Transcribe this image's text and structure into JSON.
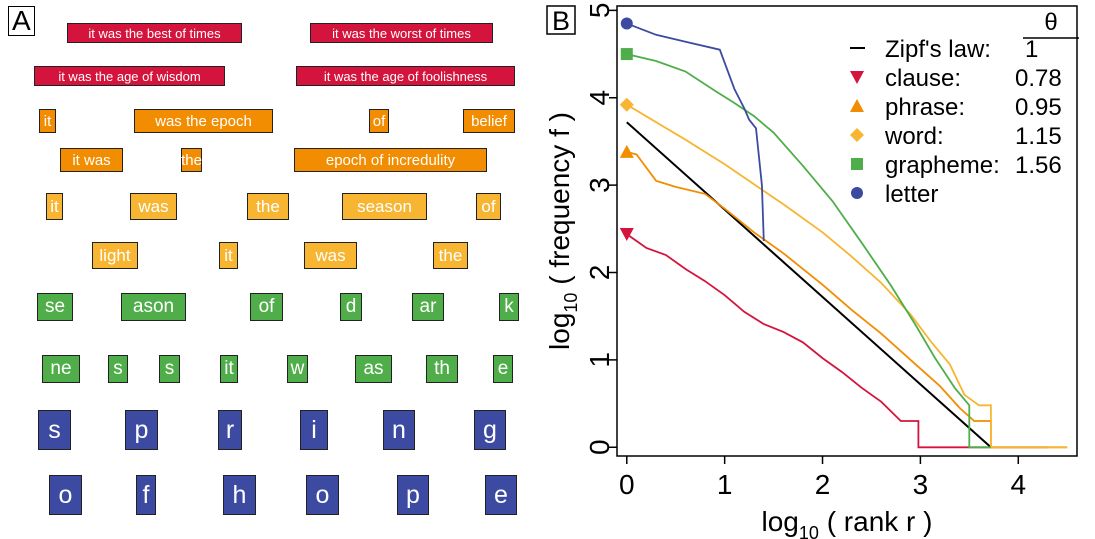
{
  "panel_a": {
    "label": "A",
    "colors": {
      "clause": "#d4143c",
      "phrase": "#f28c00",
      "word": "#f7b532",
      "grapheme": "#4fae49",
      "letter": "#3c4ba1"
    },
    "rows": [
      {
        "level": "clause",
        "items": [
          "it was the best of times",
          "it was the worst of times"
        ]
      },
      {
        "level": "clause",
        "items": [
          "it was the age of wisdom",
          "it was the age of foolishness"
        ]
      },
      {
        "level": "phrase",
        "items": [
          "it",
          "was the epoch",
          "of",
          "belief"
        ]
      },
      {
        "level": "phrase",
        "items": [
          "it was",
          "the",
          "epoch of incredulity"
        ]
      },
      {
        "level": "word",
        "items": [
          "it",
          "was",
          "the",
          "season",
          "of"
        ]
      },
      {
        "level": "word",
        "items": [
          "light",
          "it",
          "was",
          "the"
        ]
      },
      {
        "level": "grapheme",
        "items": [
          "se",
          "ason",
          "of",
          "d",
          "ar",
          "k"
        ]
      },
      {
        "level": "grapheme",
        "items": [
          "ne",
          "s",
          "s",
          "it",
          "w",
          "as",
          "th",
          "e"
        ]
      },
      {
        "level": "letter",
        "items": [
          "s",
          "p",
          "r",
          "i",
          "n",
          "g"
        ]
      },
      {
        "level": "letter",
        "items": [
          "o",
          "f",
          "h",
          "o",
          "p",
          "e"
        ]
      }
    ]
  },
  "chart_data": {
    "type": "line",
    "panel_label": "B",
    "xlabel": "log10 ( rank r )",
    "ylabel": "log10 ( frequency f )",
    "xlim": [
      -0.1,
      4.6
    ],
    "ylim": [
      -0.1,
      5.05
    ],
    "xticks": [
      0,
      1,
      2,
      3,
      4
    ],
    "yticks": [
      0,
      1,
      2,
      3,
      4,
      5
    ],
    "legend_header": "θ",
    "legend": [
      {
        "name": "Zipf's law:",
        "theta": "1",
        "color": "#000000",
        "marker": "line"
      },
      {
        "name": "clause:",
        "theta": "0.78",
        "color": "#d4143c",
        "marker": "triangle-down"
      },
      {
        "name": "phrase:",
        "theta": "0.95",
        "color": "#f28c00",
        "marker": "triangle-up"
      },
      {
        "name": "word:",
        "theta": "1.15",
        "color": "#f7b532",
        "marker": "diamond"
      },
      {
        "name": "grapheme:",
        "theta": "1.56",
        "color": "#4fae49",
        "marker": "square"
      },
      {
        "name": "letter",
        "theta": "",
        "color": "#3c4ba1",
        "marker": "circle"
      }
    ],
    "zipf_line": {
      "x": [
        0,
        3.72
      ],
      "y": [
        3.72,
        0
      ]
    },
    "series": [
      {
        "name": "clause",
        "color": "#d4143c",
        "x": [
          0,
          0.2,
          0.4,
          0.6,
          0.8,
          1.0,
          1.2,
          1.4,
          1.6,
          1.8,
          2.0,
          2.2,
          2.4,
          2.6,
          2.8,
          2.98,
          2.98,
          4.3
        ],
        "y": [
          2.44,
          2.28,
          2.2,
          2.04,
          1.9,
          1.74,
          1.55,
          1.41,
          1.32,
          1.2,
          1.02,
          0.86,
          0.68,
          0.52,
          0.3,
          0.3,
          0,
          0
        ]
      },
      {
        "name": "phrase",
        "color": "#f28c00",
        "x": [
          0,
          0.1,
          0.3,
          0.5,
          0.8,
          1.0,
          1.3,
          1.6,
          2.0,
          2.3,
          2.6,
          2.9,
          3.2,
          3.4,
          3.55,
          3.65,
          3.72,
          3.72,
          4.5
        ],
        "y": [
          3.38,
          3.35,
          3.05,
          2.98,
          2.9,
          2.73,
          2.46,
          2.22,
          1.86,
          1.57,
          1.3,
          1.0,
          0.7,
          0.45,
          0.3,
          0.3,
          0.3,
          0,
          0
        ]
      },
      {
        "name": "word",
        "color": "#f7b532",
        "x": [
          0,
          0.3,
          0.6,
          1.0,
          1.3,
          1.6,
          2.0,
          2.3,
          2.6,
          2.9,
          3.1,
          3.3,
          3.45,
          3.6,
          3.72,
          3.72,
          4.5
        ],
        "y": [
          3.92,
          3.72,
          3.52,
          3.24,
          3.01,
          2.78,
          2.46,
          2.18,
          1.88,
          1.52,
          1.22,
          0.95,
          0.6,
          0.48,
          0.48,
          0,
          0
        ]
      },
      {
        "name": "grapheme",
        "color": "#4fae49",
        "x": [
          0,
          0.3,
          0.6,
          0.9,
          1.1,
          1.3,
          1.5,
          1.8,
          2.1,
          2.4,
          2.7,
          2.95,
          3.15,
          3.35,
          3.5,
          3.5,
          3.72
        ],
        "y": [
          4.5,
          4.42,
          4.3,
          4.08,
          3.94,
          3.79,
          3.6,
          3.22,
          2.82,
          2.34,
          1.85,
          1.4,
          1.02,
          0.68,
          0.48,
          0,
          0
        ]
      },
      {
        "name": "letter",
        "color": "#3c4ba1",
        "x": [
          0,
          0.3,
          0.6,
          0.95,
          1.1,
          1.2,
          1.25,
          1.32,
          1.38,
          1.4
        ],
        "y": [
          4.85,
          4.72,
          4.64,
          4.55,
          4.1,
          3.88,
          3.75,
          3.65,
          3.0,
          2.36
        ]
      }
    ]
  }
}
